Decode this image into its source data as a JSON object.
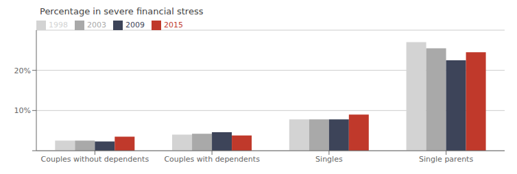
{
  "chart_data": {
    "type": "bar",
    "title": "Percentage in severe financial stress",
    "categories": [
      "Couples without dependents",
      "Couples with dependents",
      "Singles",
      "Single parents"
    ],
    "series": [
      {
        "name": "1998",
        "color": "#d3d3d3",
        "values": [
          2.5,
          4.0,
          7.8,
          27.0
        ]
      },
      {
        "name": "2003",
        "color": "#a9a9a9",
        "values": [
          2.5,
          4.2,
          7.8,
          25.5
        ]
      },
      {
        "name": "2009",
        "color": "#3d4459",
        "values": [
          2.3,
          4.6,
          7.8,
          22.5
        ]
      },
      {
        "name": "2015",
        "color": "#c0392b",
        "values": [
          3.5,
          3.8,
          9.0,
          24.5
        ]
      }
    ],
    "ylim": [
      0,
      30
    ],
    "yticks": [
      {
        "value": 0,
        "label": ""
      },
      {
        "value": 10,
        "label": "10%"
      },
      {
        "value": 20,
        "label": "20%"
      }
    ],
    "grid": true,
    "legend": "upper left"
  }
}
